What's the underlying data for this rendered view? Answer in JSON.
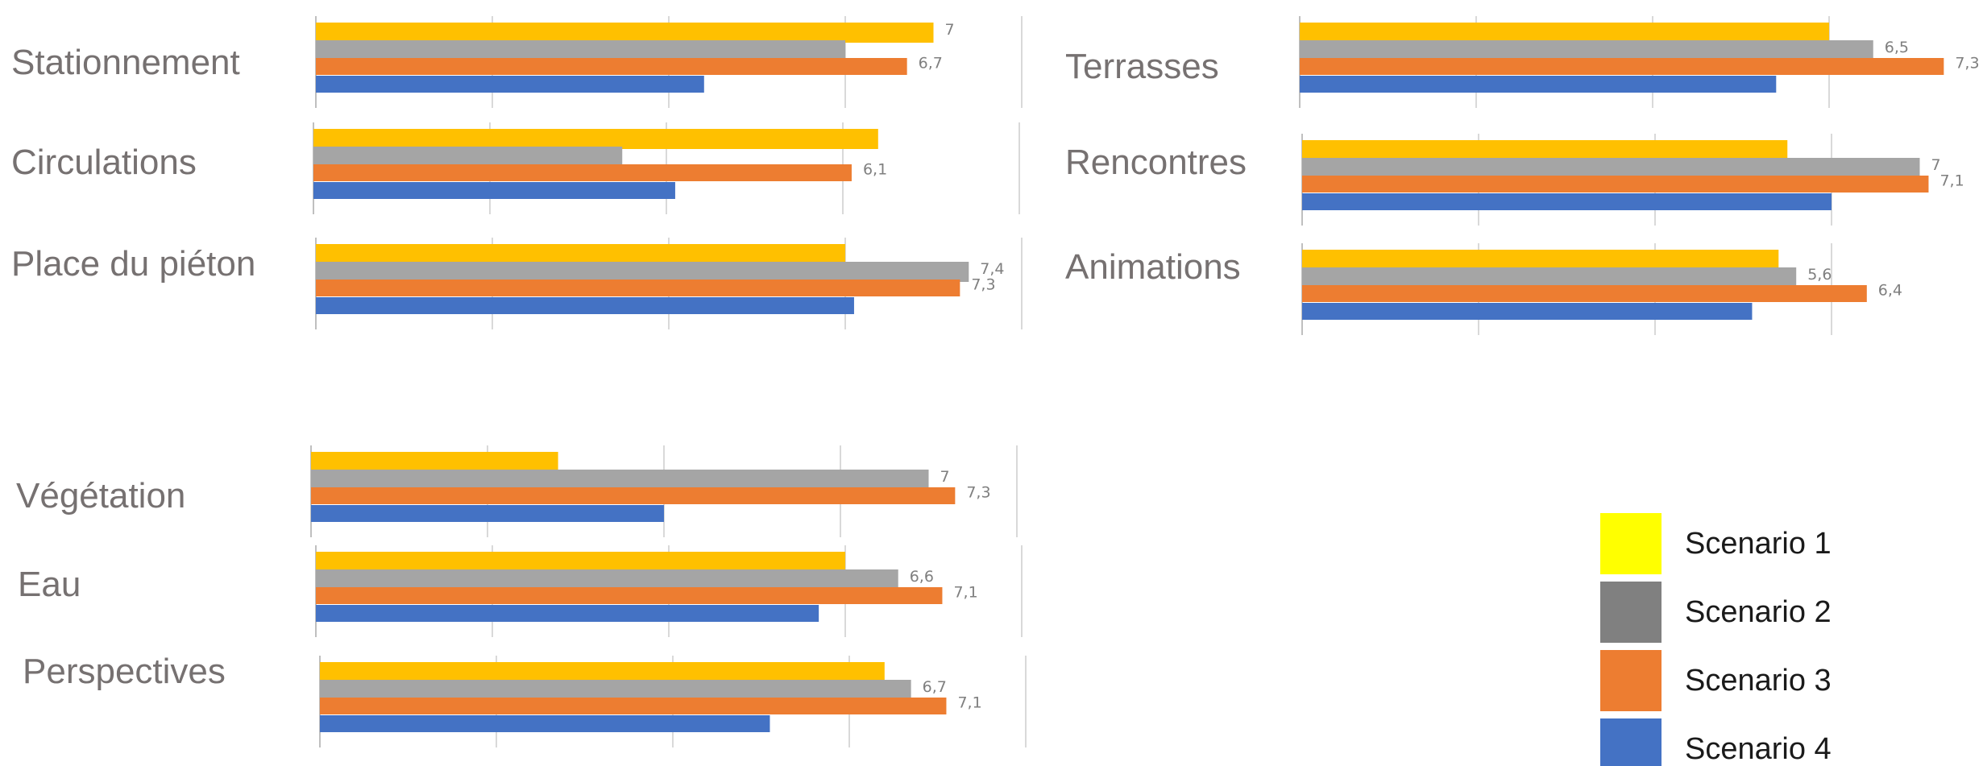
{
  "legend": {
    "items": [
      {
        "name": "Scenario 1",
        "color": "#FFFF00"
      },
      {
        "name": "Scenario 2",
        "color": "#808080"
      },
      {
        "name": "Scenario 3",
        "color": "#ED7D31"
      },
      {
        "name": "Scenario 4",
        "color": "#4472C4"
      }
    ]
  },
  "chart_data": [
    {
      "type": "bar",
      "orientation": "horizontal",
      "title": "",
      "categories": [
        "Stationnement"
      ],
      "series": [
        {
          "name": "Scenario 1",
          "color": "#FFC000",
          "values": [
            7
          ],
          "label": "7"
        },
        {
          "name": "Scenario 2",
          "color": "#A5A5A5",
          "values": [
            6
          ],
          "label": ""
        },
        {
          "name": "Scenario 3",
          "color": "#ED7D31",
          "values": [
            6.7
          ],
          "label": "6,7"
        },
        {
          "name": "Scenario 4",
          "color": "#4472C4",
          "values": [
            4.4
          ],
          "label": ""
        }
      ],
      "xlim": [
        0,
        8
      ],
      "grid": true
    },
    {
      "type": "bar",
      "orientation": "horizontal",
      "title": "",
      "categories": [
        "Circulations"
      ],
      "series": [
        {
          "name": "Scenario 1",
          "color": "#FFC000",
          "values": [
            6.4
          ],
          "label": ""
        },
        {
          "name": "Scenario 2",
          "color": "#A5A5A5",
          "values": [
            3.5
          ],
          "label": ""
        },
        {
          "name": "Scenario 3",
          "color": "#ED7D31",
          "values": [
            6.1
          ],
          "label": "6,1"
        },
        {
          "name": "Scenario 4",
          "color": "#4472C4",
          "values": [
            4.1
          ],
          "label": ""
        }
      ],
      "xlim": [
        0,
        8
      ],
      "grid": true
    },
    {
      "type": "bar",
      "orientation": "horizontal",
      "title": "",
      "categories": [
        "Place du piéton"
      ],
      "series": [
        {
          "name": "Scenario 1",
          "color": "#FFC000",
          "values": [
            6
          ],
          "label": ""
        },
        {
          "name": "Scenario 2",
          "color": "#A5A5A5",
          "values": [
            7.4
          ],
          "label": "7,4"
        },
        {
          "name": "Scenario 3",
          "color": "#ED7D31",
          "values": [
            7.3
          ],
          "label": "7,3"
        },
        {
          "name": "Scenario 4",
          "color": "#4472C4",
          "values": [
            6.1
          ],
          "label": ""
        }
      ],
      "xlim": [
        0,
        8
      ],
      "grid": true
    },
    {
      "type": "bar",
      "orientation": "horizontal",
      "title": "",
      "categories": [
        "Terrasses"
      ],
      "series": [
        {
          "name": "Scenario 1",
          "color": "#FFC000",
          "values": [
            6
          ],
          "label": ""
        },
        {
          "name": "Scenario 2",
          "color": "#A5A5A5",
          "values": [
            6.5
          ],
          "label": "6,5"
        },
        {
          "name": "Scenario 3",
          "color": "#ED7D31",
          "values": [
            7.3
          ],
          "label": "7,3"
        },
        {
          "name": "Scenario 4",
          "color": "#4472C4",
          "values": [
            5.4
          ],
          "label": ""
        }
      ],
      "xlim": [
        0,
        8
      ],
      "grid": true
    },
    {
      "type": "bar",
      "orientation": "horizontal",
      "title": "",
      "categories": [
        "Rencontres"
      ],
      "series": [
        {
          "name": "Scenario 1",
          "color": "#FFC000",
          "values": [
            5.5
          ],
          "label": ""
        },
        {
          "name": "Scenario 2",
          "color": "#A5A5A5",
          "values": [
            7
          ],
          "label": "7"
        },
        {
          "name": "Scenario 3",
          "color": "#ED7D31",
          "values": [
            7.1
          ],
          "label": "7,1"
        },
        {
          "name": "Scenario 4",
          "color": "#4472C4",
          "values": [
            6
          ],
          "label": ""
        }
      ],
      "xlim": [
        0,
        8
      ],
      "grid": true
    },
    {
      "type": "bar",
      "orientation": "horizontal",
      "title": "",
      "categories": [
        "Animations"
      ],
      "series": [
        {
          "name": "Scenario 1",
          "color": "#FFC000",
          "values": [
            5.4
          ],
          "label": ""
        },
        {
          "name": "Scenario 2",
          "color": "#A5A5A5",
          "values": [
            5.6
          ],
          "label": "5,6"
        },
        {
          "name": "Scenario 3",
          "color": "#ED7D31",
          "values": [
            6.4
          ],
          "label": "6,4"
        },
        {
          "name": "Scenario 4",
          "color": "#4472C4",
          "values": [
            5.1
          ],
          "label": ""
        }
      ],
      "xlim": [
        0,
        8
      ],
      "grid": true
    },
    {
      "type": "bar",
      "orientation": "horizontal",
      "title": "",
      "categories": [
        "Végétation"
      ],
      "series": [
        {
          "name": "Scenario 1",
          "color": "#FFC000",
          "values": [
            2.8
          ],
          "label": ""
        },
        {
          "name": "Scenario 2",
          "color": "#A5A5A5",
          "values": [
            7
          ],
          "label": "7"
        },
        {
          "name": "Scenario 3",
          "color": "#ED7D31",
          "values": [
            7.3
          ],
          "label": "7,3"
        },
        {
          "name": "Scenario 4",
          "color": "#4472C4",
          "values": [
            4
          ],
          "label": ""
        }
      ],
      "xlim": [
        0,
        8
      ],
      "grid": true
    },
    {
      "type": "bar",
      "orientation": "horizontal",
      "title": "",
      "categories": [
        "Eau"
      ],
      "series": [
        {
          "name": "Scenario 1",
          "color": "#FFC000",
          "values": [
            6
          ],
          "label": ""
        },
        {
          "name": "Scenario 2",
          "color": "#A5A5A5",
          "values": [
            6.6
          ],
          "label": "6,6"
        },
        {
          "name": "Scenario 3",
          "color": "#ED7D31",
          "values": [
            7.1
          ],
          "label": "7,1"
        },
        {
          "name": "Scenario 4",
          "color": "#4472C4",
          "values": [
            5.7
          ],
          "label": ""
        }
      ],
      "xlim": [
        0,
        8
      ],
      "grid": true
    },
    {
      "type": "bar",
      "orientation": "horizontal",
      "title": "",
      "categories": [
        "Perspectives"
      ],
      "series": [
        {
          "name": "Scenario 1",
          "color": "#FFC000",
          "values": [
            6.4
          ],
          "label": ""
        },
        {
          "name": "Scenario 2",
          "color": "#A5A5A5",
          "values": [
            6.7
          ],
          "label": "6,7"
        },
        {
          "name": "Scenario 3",
          "color": "#ED7D31",
          "values": [
            7.1
          ],
          "label": "7,1"
        },
        {
          "name": "Scenario 4",
          "color": "#4472C4",
          "values": [
            5.1
          ],
          "label": ""
        }
      ],
      "xlim": [
        0,
        8
      ],
      "grid": true
    }
  ]
}
